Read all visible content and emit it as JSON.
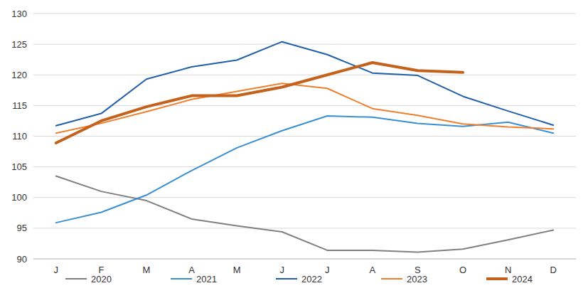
{
  "chart_data": {
    "type": "line",
    "categories": [
      "J",
      "F",
      "M",
      "A",
      "M",
      "J",
      "J",
      "A",
      "S",
      "O",
      "N",
      "D"
    ],
    "series": [
      {
        "name": "2020",
        "color": "#808080",
        "values": [
          103.5,
          101,
          99.5,
          96.5,
          95.4,
          94.4,
          91.4,
          91.4,
          91.1,
          91.6,
          93.1,
          94.7
        ]
      },
      {
        "name": "2021",
        "color": "#3a8fd1",
        "values": [
          95.9,
          97.6,
          100.4,
          104.4,
          108.1,
          110.9,
          113.3,
          113.1,
          112.1,
          111.6,
          112.3,
          110.5
        ]
      },
      {
        "name": "2022",
        "color": "#2160a8",
        "values": [
          111.7,
          113.7,
          119.3,
          121.3,
          122.4,
          125.4,
          123.3,
          120.3,
          119.9,
          116.5,
          114.1,
          111.8
        ]
      },
      {
        "name": "2023",
        "color": "#ef7f2f",
        "values": [
          110.5,
          112.1,
          114,
          116,
          117.3,
          118.6,
          117.8,
          114.5,
          113.4,
          112,
          111.5,
          111.2
        ]
      },
      {
        "name": "2024",
        "color": "#c4621c",
        "values": [
          108.9,
          112.5,
          114.8,
          116.6,
          116.6,
          118,
          120,
          122,
          120.7,
          120.4,
          null,
          null
        ]
      }
    ],
    "ylim": [
      90,
      130
    ],
    "yticks": [
      90,
      95,
      100,
      105,
      110,
      115,
      120,
      125,
      130
    ],
    "grid": true,
    "legend": "bottom"
  }
}
